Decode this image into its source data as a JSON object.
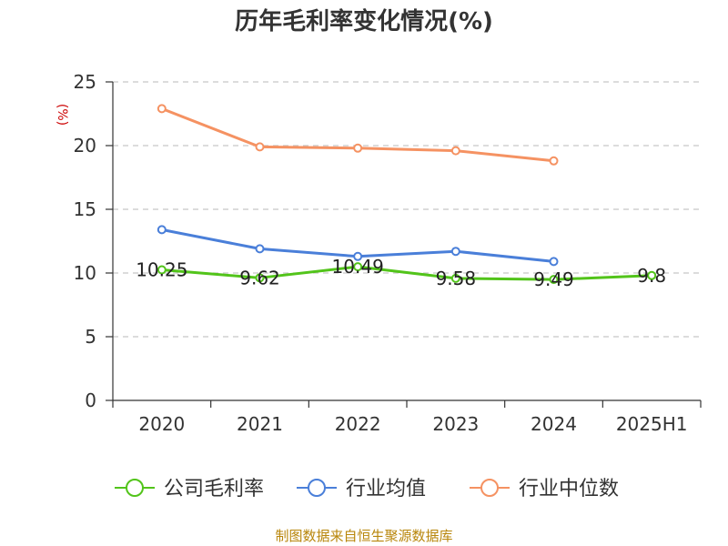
{
  "chart_data": {
    "type": "line",
    "title": "历年毛利率变化情况(%)",
    "ylabel": "(%)",
    "xlabel": "",
    "categories": [
      "2020",
      "2021",
      "2022",
      "2023",
      "2024",
      "2025H1"
    ],
    "ylim": [
      0,
      25
    ],
    "yticks": [
      0,
      5,
      10,
      15,
      20,
      25
    ],
    "grid": true,
    "legend_position": "bottom",
    "series": [
      {
        "name": "公司毛利率",
        "color": "#52c41a",
        "values": [
          10.25,
          9.62,
          10.49,
          9.58,
          9.49,
          9.8
        ],
        "labels": [
          "10.25",
          "9.62",
          "10.49",
          "9.58",
          "9.49",
          "9.8"
        ]
      },
      {
        "name": "行业均值",
        "color": "#4a7fd9",
        "values": [
          13.4,
          11.9,
          11.3,
          11.7,
          10.9,
          null
        ]
      },
      {
        "name": "行业中位数",
        "color": "#f59262",
        "values": [
          22.9,
          19.9,
          19.8,
          19.6,
          18.8,
          null
        ]
      }
    ]
  },
  "source": "制图数据来自恒生聚源数据库"
}
